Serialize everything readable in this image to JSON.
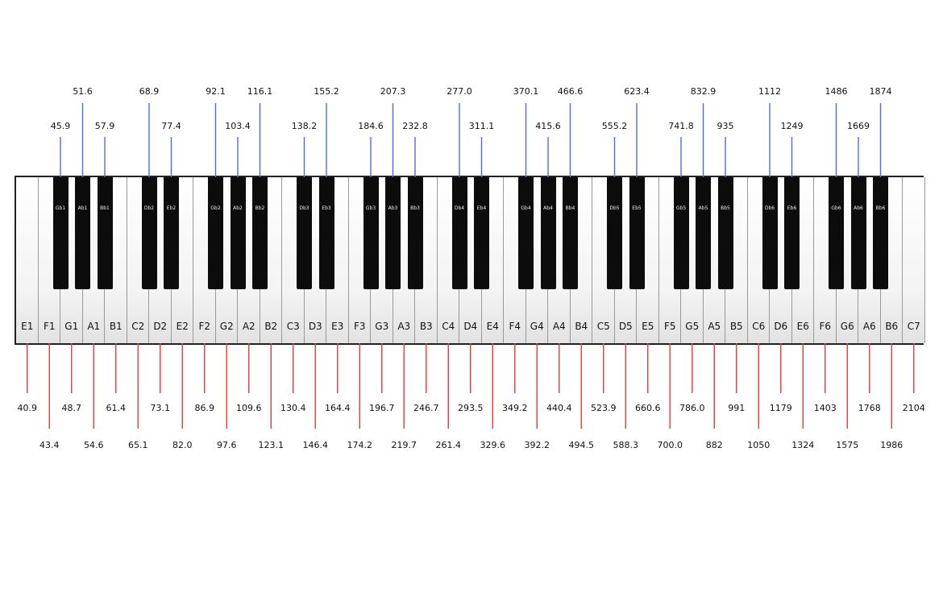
{
  "keyboard": {
    "white_keys": [
      {
        "note": "E1",
        "freq": "40.9"
      },
      {
        "note": "F1",
        "freq": "43.4"
      },
      {
        "note": "G1",
        "freq": "48.7"
      },
      {
        "note": "A1",
        "freq": "54.6"
      },
      {
        "note": "B1",
        "freq": "61.4"
      },
      {
        "note": "C2",
        "freq": "65.1"
      },
      {
        "note": "D2",
        "freq": "73.1"
      },
      {
        "note": "E2",
        "freq": "82.0"
      },
      {
        "note": "F2",
        "freq": "86.9"
      },
      {
        "note": "G2",
        "freq": "97.6"
      },
      {
        "note": "A2",
        "freq": "109.6"
      },
      {
        "note": "B2",
        "freq": "123.1"
      },
      {
        "note": "C3",
        "freq": "130.4"
      },
      {
        "note": "D3",
        "freq": "146.4"
      },
      {
        "note": "E3",
        "freq": "164.4"
      },
      {
        "note": "F3",
        "freq": "174.2"
      },
      {
        "note": "G3",
        "freq": "196.7"
      },
      {
        "note": "A3",
        "freq": "219.7"
      },
      {
        "note": "B3",
        "freq": "246.7"
      },
      {
        "note": "C4",
        "freq": "261.4"
      },
      {
        "note": "D4",
        "freq": "293.5"
      },
      {
        "note": "E4",
        "freq": "329.6"
      },
      {
        "note": "F4",
        "freq": "349.2"
      },
      {
        "note": "G4",
        "freq": "392.2"
      },
      {
        "note": "A4",
        "freq": "440.4"
      },
      {
        "note": "B4",
        "freq": "494.5"
      },
      {
        "note": "C5",
        "freq": "523.9"
      },
      {
        "note": "D5",
        "freq": "588.3"
      },
      {
        "note": "E5",
        "freq": "660.6"
      },
      {
        "note": "F5",
        "freq": "700.0"
      },
      {
        "note": "G5",
        "freq": "786.0"
      },
      {
        "note": "A5",
        "freq": "882"
      },
      {
        "note": "B5",
        "freq": "991"
      },
      {
        "note": "C6",
        "freq": "1050"
      },
      {
        "note": "D6",
        "freq": "1179"
      },
      {
        "note": "E6",
        "freq": "1324"
      },
      {
        "note": "F6",
        "freq": "1403"
      },
      {
        "note": "G6",
        "freq": "1575"
      },
      {
        "note": "A6",
        "freq": "1768"
      },
      {
        "note": "B6",
        "freq": "1986"
      },
      {
        "note": "C7",
        "freq": "2104"
      }
    ],
    "black_keys": [
      {
        "note": "Gb1",
        "freq": "45.9"
      },
      {
        "note": "Ab1",
        "freq": "51.6"
      },
      {
        "note": "Bb1",
        "freq": "57.9"
      },
      {
        "note": "Db2",
        "freq": "68.9"
      },
      {
        "note": "Eb2",
        "freq": "77.4"
      },
      {
        "note": "Gb2",
        "freq": "92.1"
      },
      {
        "note": "Ab2",
        "freq": "103.4"
      },
      {
        "note": "Bb2",
        "freq": "116.1"
      },
      {
        "note": "Db3",
        "freq": "138.2"
      },
      {
        "note": "Eb3",
        "freq": "155.2"
      },
      {
        "note": "Gb3",
        "freq": "184.6"
      },
      {
        "note": "Ab3",
        "freq": "207.3"
      },
      {
        "note": "Bb3",
        "freq": "232.8"
      },
      {
        "note": "Db4",
        "freq": "277.0"
      },
      {
        "note": "Eb4",
        "freq": "311.1"
      },
      {
        "note": "Gb4",
        "freq": "370.1"
      },
      {
        "note": "Ab4",
        "freq": "415.6"
      },
      {
        "note": "Bb4",
        "freq": "466.6"
      },
      {
        "note": "Db5",
        "freq": "555.2"
      },
      {
        "note": "Eb5",
        "freq": "623.4"
      },
      {
        "note": "Gb5",
        "freq": "741.8"
      },
      {
        "note": "Ab5",
        "freq": "832.9"
      },
      {
        "note": "Bb5",
        "freq": "935"
      },
      {
        "note": "Db6",
        "freq": "1112"
      },
      {
        "note": "Eb6",
        "freq": "1249"
      },
      {
        "note": "Gb6",
        "freq": "1486"
      },
      {
        "note": "Ab6",
        "freq": "1669"
      },
      {
        "note": "Bb6",
        "freq": "1874"
      }
    ]
  },
  "colors": {
    "white_leader": "#e53935",
    "black_leader": "#4a6fd8"
  }
}
